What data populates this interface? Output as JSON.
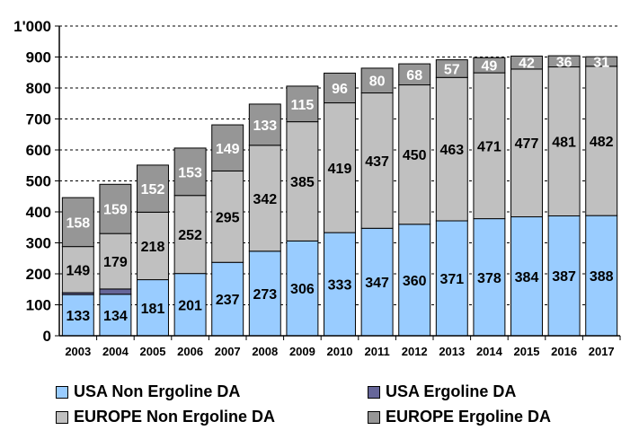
{
  "chart_data": {
    "type": "bar",
    "stacked": true,
    "categories": [
      "2003",
      "2004",
      "2005",
      "2006",
      "2007",
      "2008",
      "2009",
      "2010",
      "2011",
      "2012",
      "2013",
      "2014",
      "2015",
      "2016",
      "2017"
    ],
    "series": [
      {
        "name": "USA Non Ergoline DA",
        "color": "#99ccff",
        "values": [
          133,
          134,
          181,
          201,
          237,
          273,
          306,
          333,
          347,
          360,
          371,
          378,
          384,
          387,
          388
        ],
        "labels": [
          "133",
          "134",
          "181",
          "201",
          "237",
          "273",
          "306",
          "333",
          "347",
          "360",
          "371",
          "378",
          "384",
          "387",
          "388"
        ]
      },
      {
        "name": "USA Ergoline DA",
        "color": "#666699",
        "values": [
          6,
          17,
          0,
          0,
          0,
          0,
          0,
          0,
          0,
          0,
          0,
          0,
          0,
          0,
          0
        ],
        "labels": [
          "6",
          "17",
          "",
          "",
          "",
          "",
          "",
          "",
          "",
          "",
          "",
          "",
          "",
          "",
          ""
        ]
      },
      {
        "name": "EUROPE Non Ergoline DA",
        "color": "#c0c0c0",
        "values": [
          149,
          179,
          218,
          252,
          295,
          342,
          385,
          419,
          437,
          450,
          463,
          471,
          477,
          481,
          482
        ],
        "labels": [
          "149",
          "179",
          "218",
          "252",
          "295",
          "342",
          "385",
          "419",
          "437",
          "450",
          "463",
          "471",
          "477",
          "481",
          "482"
        ]
      },
      {
        "name": "EUROPE Ergoline DA",
        "color": "#969696",
        "values": [
          158,
          159,
          152,
          153,
          149,
          133,
          115,
          96,
          80,
          68,
          57,
          49,
          42,
          36,
          31
        ],
        "labels": [
          "158",
          "159",
          "152",
          "153",
          "149",
          "133",
          "115",
          "96",
          "80",
          "68",
          "57",
          "49",
          "42",
          "36",
          "31"
        ]
      }
    ],
    "ylim": [
      0,
      1000
    ],
    "yticks": [
      0,
      100,
      200,
      300,
      400,
      500,
      600,
      700,
      800,
      900,
      1000
    ],
    "ytick_labels": [
      "0",
      "100",
      "200",
      "300",
      "400",
      "500",
      "600",
      "700",
      "800",
      "900",
      "1'000"
    ],
    "grid": true,
    "legend_position": "bottom",
    "title": "",
    "xlabel": "",
    "ylabel": ""
  }
}
